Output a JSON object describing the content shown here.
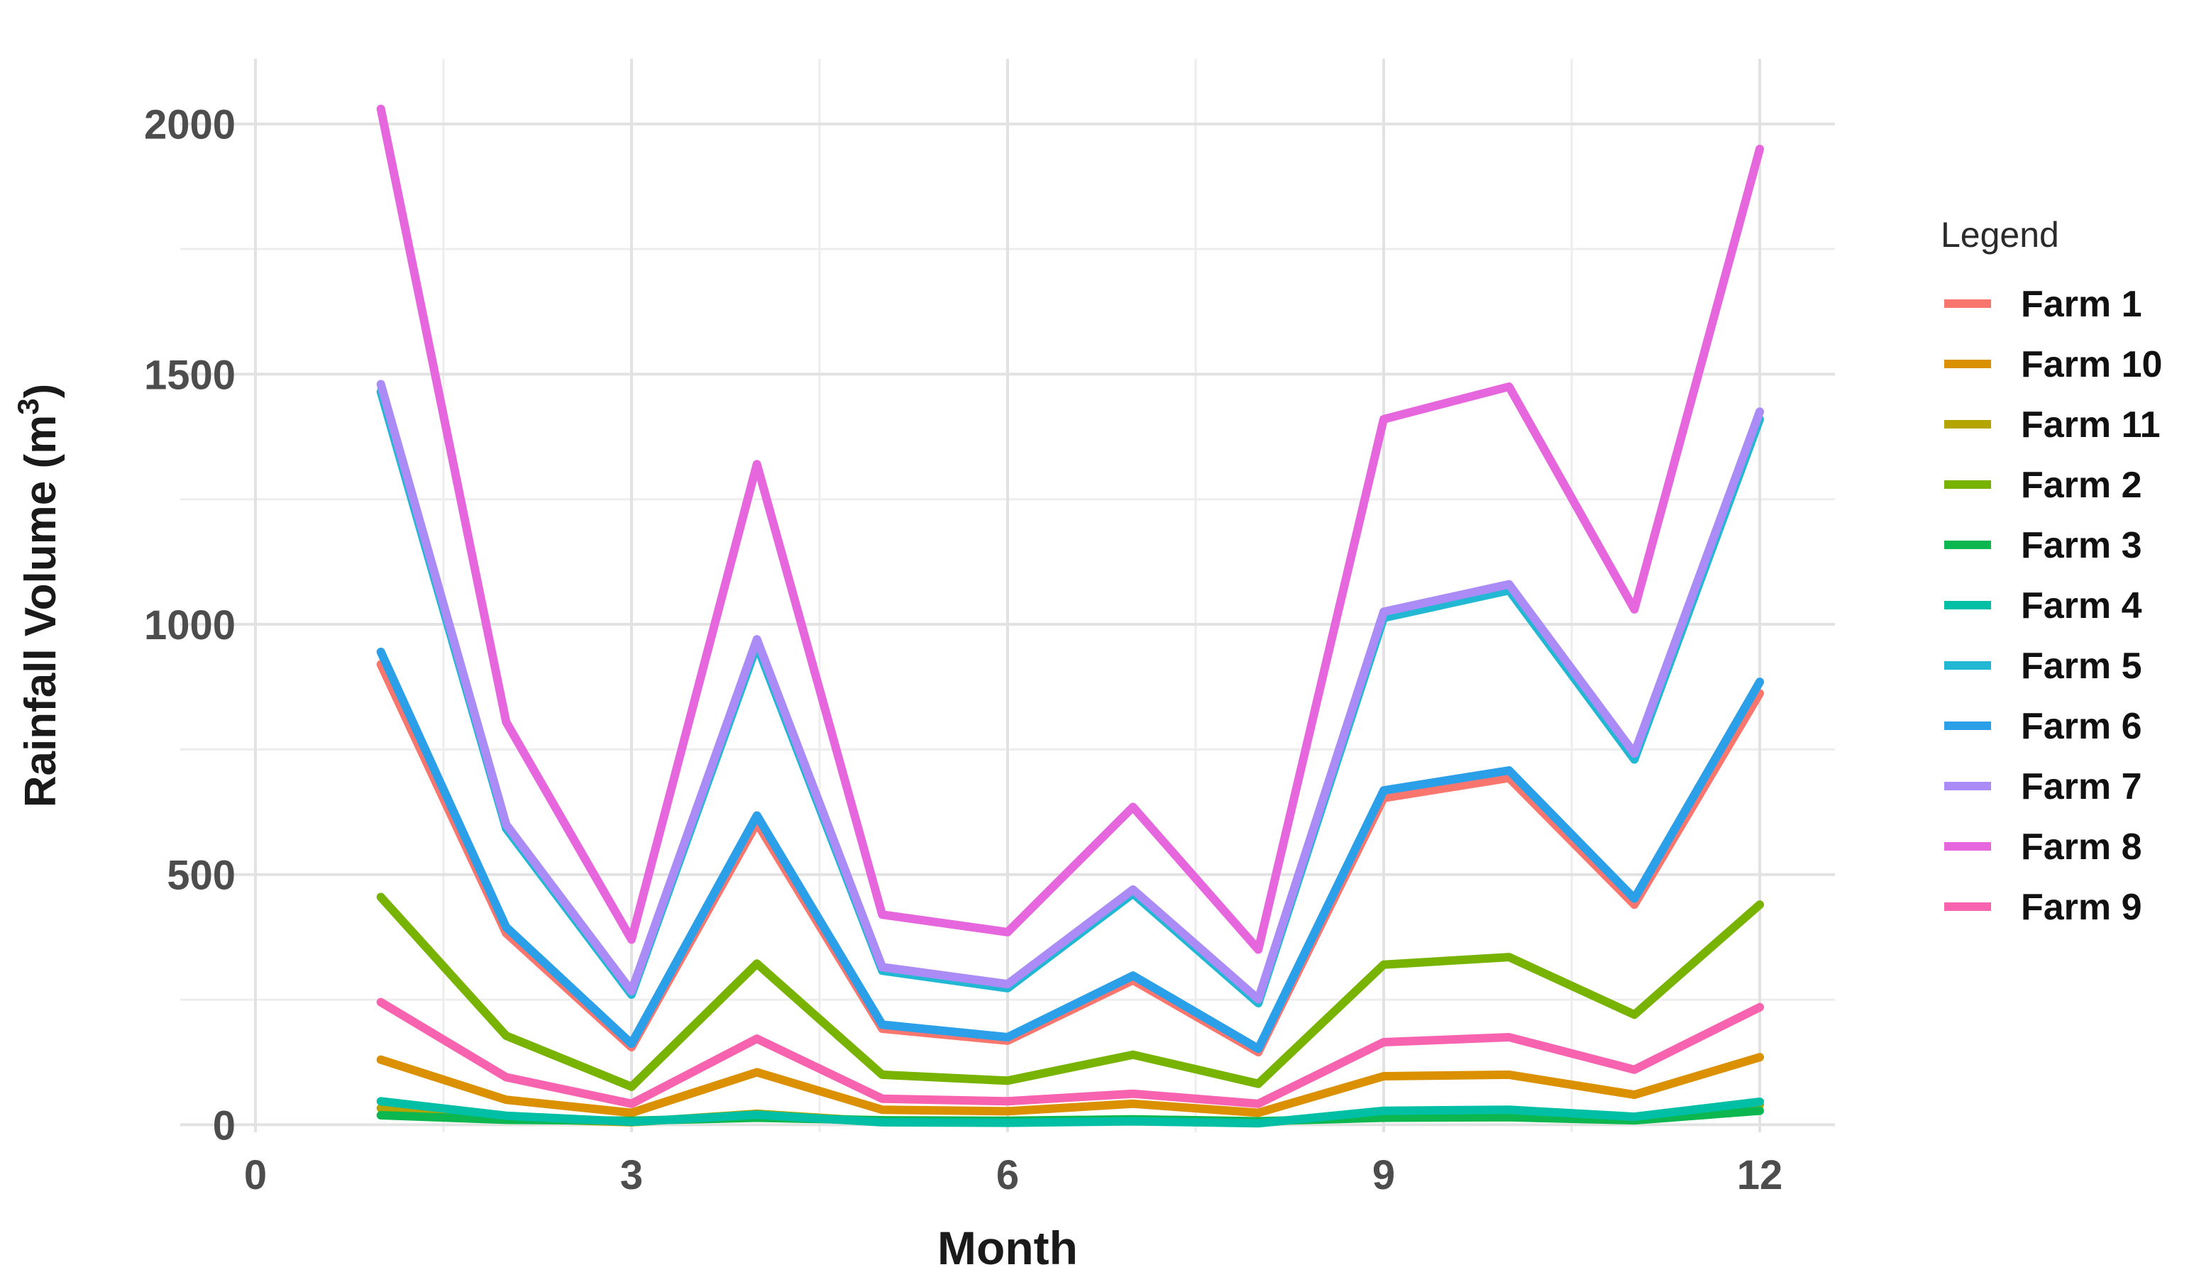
{
  "chart_data": {
    "type": "line",
    "title": "",
    "xlabel": "Month",
    "ylabel": "Rainfall Volume (m³)",
    "ylabel_parts": {
      "prefix": "Rainfall Volume (m",
      "sup": "3",
      "suffix": ")"
    },
    "x": [
      1,
      2,
      3,
      4,
      5,
      6,
      7,
      8,
      9,
      10,
      11,
      12
    ],
    "xlim": [
      -0.6,
      12.6
    ],
    "ylim": [
      -15,
      2130
    ],
    "x_major_ticks": [
      0,
      3,
      6,
      9,
      12
    ],
    "x_minor_gridlines": [
      1.5,
      4.5,
      7.5,
      10.5
    ],
    "y_major_ticks": [
      0,
      500,
      1000,
      1500,
      2000
    ],
    "y_minor_gridlines": [
      250,
      750,
      1250,
      1750
    ],
    "grid": true,
    "legend_position": "right",
    "legend_title": "Legend",
    "series": [
      {
        "name": "Farm 1",
        "color": "#F8766D",
        "values": [
          920,
          383,
          155,
          603,
          192,
          168,
          289,
          145,
          653,
          693,
          440,
          862
        ]
      },
      {
        "name": "Farm 10",
        "color": "#DB9000",
        "values": [
          130,
          50,
          24,
          105,
          30,
          27,
          42,
          24,
          97,
          100,
          60,
          135
        ]
      },
      {
        "name": "Farm 11",
        "color": "#B3A400",
        "values": [
          33,
          13,
          5,
          22,
          6,
          5,
          9,
          4,
          23,
          24,
          10,
          40
        ]
      },
      {
        "name": "Farm 2",
        "color": "#77B300",
        "values": [
          455,
          178,
          76,
          322,
          100,
          88,
          140,
          82,
          320,
          335,
          220,
          440
        ]
      },
      {
        "name": "Farm 3",
        "color": "#0CB74F",
        "values": [
          19,
          10,
          8,
          14,
          9,
          8,
          11,
          7,
          14,
          15,
          9,
          28
        ]
      },
      {
        "name": "Farm 4",
        "color": "#00BFA4",
        "values": [
          47,
          18,
          6,
          20,
          5,
          4,
          7,
          3,
          28,
          30,
          16,
          46
        ]
      },
      {
        "name": "Farm 5",
        "color": "#22B8D4",
        "values": [
          1465,
          592,
          260,
          958,
          308,
          273,
          462,
          243,
          1013,
          1068,
          730,
          1410
        ]
      },
      {
        "name": "Farm 6",
        "color": "#2B9FE8",
        "values": [
          945,
          395,
          162,
          618,
          200,
          175,
          298,
          152,
          668,
          708,
          452,
          885
        ]
      },
      {
        "name": "Farm 7",
        "color": "#AB8BF5",
        "values": [
          1480,
          600,
          267,
          970,
          315,
          281,
          470,
          251,
          1025,
          1080,
          742,
          1425
        ]
      },
      {
        "name": "Farm 8",
        "color": "#E666DE",
        "values": [
          2030,
          805,
          370,
          1320,
          420,
          385,
          635,
          350,
          1410,
          1475,
          1030,
          1950
        ]
      },
      {
        "name": "Farm 9",
        "color": "#F763AE",
        "values": [
          245,
          95,
          42,
          172,
          52,
          47,
          62,
          42,
          165,
          175,
          110,
          235
        ]
      }
    ]
  },
  "style": {
    "background": "#ffffff",
    "grid_major_color": "#e2e2e2",
    "grid_minor_color": "#ededed",
    "tick_label_color": "#4d4d4d",
    "axis_title_color": "#1a1a1a",
    "legend_title_color": "#2b2b2b",
    "legend_label_color": "#111111",
    "line_width": 12
  }
}
